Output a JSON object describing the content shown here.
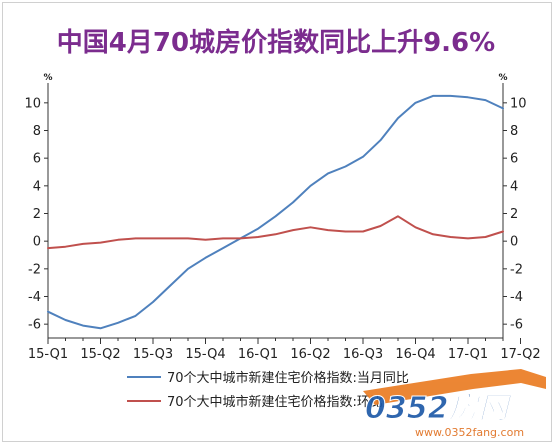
{
  "chart_data": {
    "type": "line",
    "title": "中国4月70城房价指数同比上升9.6%",
    "title_color": "#7b2c8e",
    "y_unit_left": "%",
    "y_unit_right": "%",
    "ylim": [
      -7,
      11
    ],
    "yticks": [
      -6,
      -4,
      -2,
      0,
      2,
      4,
      6,
      8,
      10
    ],
    "xlim": [
      0,
      26
    ],
    "x_tick_labels": [
      "15-Q1",
      "15-Q2",
      "15-Q3",
      "15-Q4",
      "16-Q1",
      "16-Q2",
      "16-Q3",
      "16-Q4",
      "17-Q1",
      "17-Q2"
    ],
    "x": [
      0,
      1,
      2,
      3,
      4,
      5,
      6,
      7,
      8,
      9,
      10,
      11,
      12,
      13,
      14,
      15,
      16,
      17,
      18,
      19,
      20,
      21,
      22,
      23,
      24,
      25,
      26
    ],
    "series": [
      {
        "name": "70个大中城市新建住宅价格指数:当月同比",
        "color": "#4f81bd",
        "values": [
          -5.1,
          -5.7,
          -6.1,
          -6.3,
          -5.9,
          -5.4,
          -4.4,
          -3.2,
          -2.0,
          -1.2,
          -0.5,
          0.2,
          0.9,
          1.8,
          2.8,
          4.0,
          4.9,
          5.4,
          6.1,
          7.3,
          8.9,
          10.0,
          10.5,
          10.5,
          10.4,
          10.2,
          9.6
        ]
      },
      {
        "name": "70个大中城市新建住宅价格指数:环比",
        "color": "#c0504d",
        "values": [
          -0.5,
          -0.4,
          -0.2,
          -0.1,
          0.1,
          0.2,
          0.2,
          0.2,
          0.2,
          0.1,
          0.2,
          0.2,
          0.3,
          0.5,
          0.8,
          1.0,
          0.8,
          0.7,
          0.7,
          1.1,
          1.8,
          1.0,
          0.5,
          0.3,
          0.2,
          0.3,
          0.7
        ]
      }
    ],
    "grid": false,
    "legend_position": "bottom"
  },
  "watermark": {
    "brand": "0352房网",
    "url": "www.0352fang.com"
  }
}
